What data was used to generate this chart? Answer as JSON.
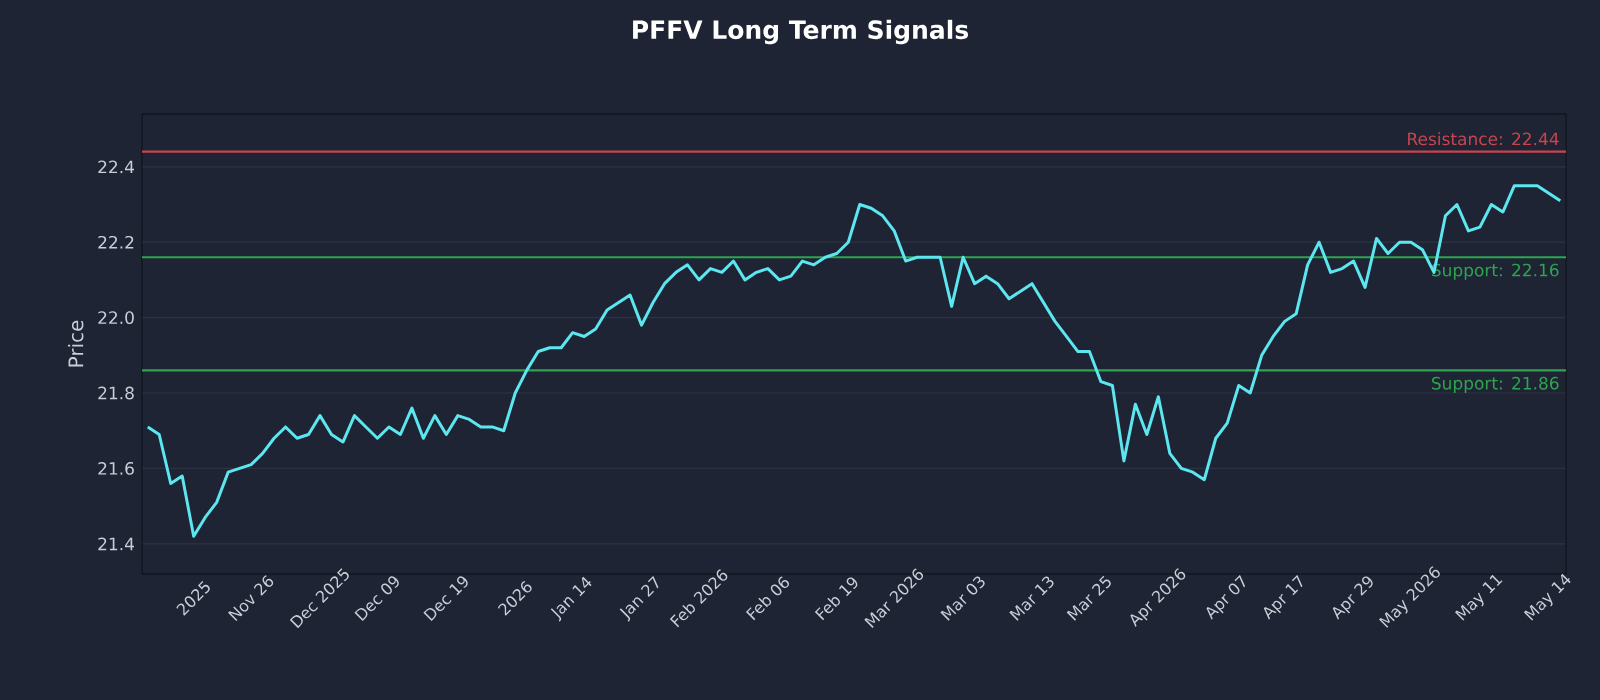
{
  "chart_data": {
    "type": "line",
    "title": "PFFV Long Term Signals",
    "ylabel": "Price",
    "categories": [
      null,
      null,
      null,
      null,
      "2025",
      null,
      null,
      null,
      null,
      "Nov 26",
      null,
      null,
      null,
      null,
      null,
      "Dec 2025",
      null,
      null,
      null,
      null,
      "Dec 09",
      null,
      null,
      null,
      null,
      null,
      "Dec 19",
      null,
      null,
      null,
      null,
      null,
      "2026",
      null,
      null,
      null,
      null,
      "Jan 14",
      null,
      null,
      null,
      null,
      null,
      "Jan 27",
      null,
      null,
      null,
      null,
      "Feb 2026",
      null,
      null,
      null,
      null,
      null,
      "Feb 06",
      null,
      null,
      null,
      null,
      null,
      "Feb 19",
      null,
      null,
      null,
      null,
      "Mar 2026",
      null,
      null,
      null,
      null,
      null,
      "Mar 03",
      null,
      null,
      null,
      null,
      null,
      "Mar 13",
      null,
      null,
      null,
      null,
      "Mar 25",
      null,
      null,
      null,
      null,
      null,
      "Apr 2026",
      null,
      null,
      null,
      null,
      null,
      "Apr 07",
      null,
      null,
      null,
      null,
      "Apr 17",
      null,
      null,
      null,
      null,
      null,
      "Apr 29",
      null,
      null,
      null,
      null,
      "May 2026",
      null,
      null,
      null,
      null,
      null,
      "May 11",
      null,
      null,
      null,
      null,
      null,
      "May 14",
      null
    ],
    "values": [
      21.71,
      21.69,
      21.56,
      21.58,
      21.42,
      21.47,
      21.51,
      21.59,
      21.6,
      21.61,
      21.64,
      21.68,
      21.71,
      21.68,
      21.69,
      21.74,
      21.69,
      21.67,
      21.74,
      21.71,
      21.68,
      21.71,
      21.69,
      21.76,
      21.68,
      21.74,
      21.69,
      21.74,
      21.73,
      21.71,
      21.71,
      21.7,
      21.8,
      21.86,
      21.91,
      21.92,
      21.92,
      21.96,
      21.95,
      21.97,
      22.02,
      22.04,
      22.06,
      21.98,
      22.04,
      22.09,
      22.12,
      22.14,
      22.1,
      22.13,
      22.12,
      22.15,
      22.1,
      22.12,
      22.13,
      22.1,
      22.11,
      22.15,
      22.14,
      22.16,
      22.17,
      22.2,
      22.3,
      22.29,
      22.27,
      22.23,
      22.15,
      22.16,
      22.16,
      22.16,
      22.03,
      22.16,
      22.09,
      22.11,
      22.09,
      22.05,
      22.07,
      22.09,
      22.04,
      21.99,
      21.95,
      21.91,
      21.91,
      21.83,
      21.82,
      21.62,
      21.77,
      21.69,
      21.79,
      21.64,
      21.6,
      21.59,
      21.57,
      21.68,
      21.72,
      21.82,
      21.8,
      21.9,
      21.95,
      21.99,
      22.01,
      22.14,
      22.2,
      22.12,
      22.13,
      22.15,
      22.08,
      22.21,
      22.17,
      22.2,
      22.2,
      22.18,
      22.12,
      22.27,
      22.3,
      22.23,
      22.24,
      22.3,
      22.28,
      22.35,
      22.35,
      22.35,
      22.33,
      22.31
    ],
    "color": "#5ce6f0",
    "ylim": [
      21.32,
      22.54
    ],
    "yticks": [
      21.4,
      21.6,
      21.8,
      {
        "value": 22.0,
        "label": "22.0"
      },
      22.2,
      22.4
    ],
    "grid": "y",
    "marker": "none",
    "line_style": "solid",
    "ref_lines": [
      {
        "axis": "y",
        "value": 22.44,
        "label": "Resistance: 22.44",
        "color": "#c8444e"
      },
      {
        "axis": "y",
        "value": 22.16,
        "label": "Support: 22.16",
        "color": "#2fa350"
      },
      {
        "axis": "y",
        "value": 21.86,
        "label": "Support: 21.86",
        "color": "#2fa350"
      }
    ]
  }
}
